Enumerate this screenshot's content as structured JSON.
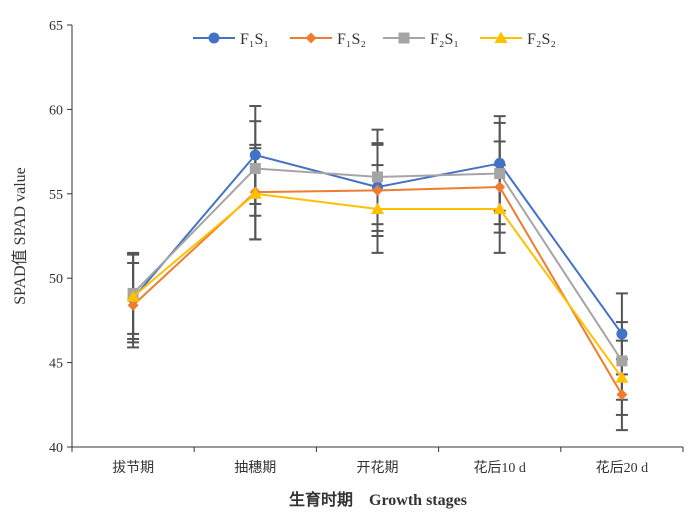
{
  "chart_data": {
    "type": "line",
    "title": "",
    "xlabel": "生育时期    Growth stages",
    "ylabel": "SPAD值 SPAD value",
    "ylim": [
      40,
      65
    ],
    "yticks": [
      40,
      45,
      50,
      55,
      60,
      65
    ],
    "categories": [
      "拔节期",
      "抽穗期",
      "开花期",
      "花后10 d",
      "花后20 d"
    ],
    "legend_position": "top",
    "grid": false,
    "series": [
      {
        "name": "F₁S₁",
        "color": "#4472C4",
        "marker": "circle",
        "values": [
          48.8,
          57.3,
          55.4,
          56.8,
          46.7
        ],
        "errors": [
          2.6,
          2.9,
          2.6,
          2.8,
          2.4
        ]
      },
      {
        "name": "F₁S₂",
        "color": "#ED7D31",
        "marker": "diamond",
        "values": [
          48.4,
          55.1,
          55.2,
          55.4,
          43.1
        ],
        "errors": [
          2.5,
          2.8,
          2.7,
          2.7,
          2.1
        ]
      },
      {
        "name": "F₂S₁",
        "color": "#A5A5A5",
        "marker": "square",
        "values": [
          49.1,
          56.5,
          56.0,
          56.2,
          45.1
        ],
        "errors": [
          2.4,
          2.8,
          2.8,
          3.0,
          2.3
        ]
      },
      {
        "name": "F₂S₂",
        "color": "#FFC000",
        "marker": "triangle",
        "values": [
          48.9,
          55.0,
          54.1,
          54.1,
          44.1
        ],
        "errors": [
          2.5,
          2.7,
          2.6,
          2.6,
          2.2
        ]
      }
    ]
  }
}
